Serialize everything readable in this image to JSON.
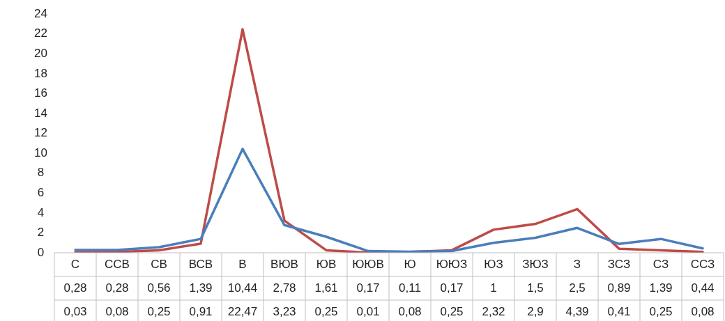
{
  "chart_data": {
    "type": "line",
    "categories": [
      "С",
      "ССВ",
      "СВ",
      "ВСВ",
      "В",
      "ВЮВ",
      "ЮВ",
      "ЮЮВ",
      "Ю",
      "ЮЮЗ",
      "ЮЗ",
      "ЗЮЗ",
      "З",
      "ЗСЗ",
      "СЗ",
      "ССЗ"
    ],
    "series": [
      {
        "color": "#4a7ebb",
        "values": [
          0.28,
          0.28,
          0.56,
          1.39,
          10.44,
          2.78,
          1.61,
          0.17,
          0.11,
          0.17,
          1,
          1.5,
          2.5,
          0.89,
          1.39,
          0.44
        ],
        "value_labels": [
          "0,28",
          "0,28",
          "0,56",
          "1,39",
          "10,44",
          "2,78",
          "1,61",
          "0,17",
          "0,11",
          "0,17",
          "1",
          "1,5",
          "2,5",
          "0,89",
          "1,39",
          "0,44"
        ]
      },
      {
        "color": "#be4b48",
        "values": [
          0.03,
          0.08,
          0.25,
          0.91,
          22.47,
          3.23,
          0.25,
          0.01,
          0.08,
          0.25,
          2.32,
          2.9,
          4.39,
          0.41,
          0.25,
          0.08
        ],
        "value_labels": [
          "0,03",
          "0,08",
          "0,25",
          "0,91",
          "22,47",
          "3,23",
          "0,25",
          "0,01",
          "0,08",
          "0,25",
          "2,32",
          "2,9",
          "4,39",
          "0,41",
          "0,25",
          "0,08"
        ]
      }
    ],
    "ylim": [
      0,
      24
    ],
    "yticks": [
      0,
      2,
      4,
      6,
      8,
      10,
      12,
      14,
      16,
      18,
      20,
      22,
      24
    ],
    "grid": false,
    "legend": false,
    "marker": "none",
    "line_style": "solid"
  }
}
